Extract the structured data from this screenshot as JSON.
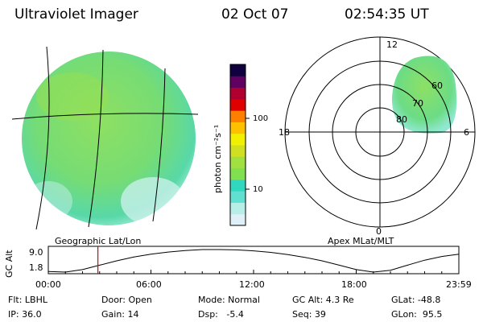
{
  "header": {
    "instrument": "Ultraviolet Imager",
    "date": "02 Oct 07",
    "time": "02:54:35 UT"
  },
  "geographic_panel": {
    "caption": "Geographic Lat/Lon"
  },
  "apex_panel": {
    "caption": "Apex MLat/MLT",
    "mlt_labels": [
      "12",
      "6",
      "0",
      "18"
    ],
    "mlat_labels": [
      "60",
      "70",
      "80"
    ]
  },
  "colorbar": {
    "label": "photon cm⁻²s⁻¹",
    "ticks": [
      "100",
      "10"
    ],
    "colors": [
      "#e0f0f8",
      "#b8eee8",
      "#60e0d0",
      "#30d8c0",
      "#80e050",
      "#a0e040",
      "#d0e020",
      "#f0f000",
      "#ffc000",
      "#ff8000",
      "#e00000",
      "#b00030",
      "#600060",
      "#100040"
    ]
  },
  "timeseries": {
    "ylabel": "GC Alt",
    "ymax_label": "9.0",
    "ymin_label": "1.8",
    "xticks": [
      "00:00",
      "06:00",
      "12:00",
      "18:00",
      "23:59"
    ],
    "current_time_marker_hours": 2.9,
    "chart_data": {
      "type": "line",
      "xlabel": "",
      "ylabel": "GC Alt",
      "ylim": [
        1.8,
        9.0
      ],
      "xlim": [
        0,
        24
      ],
      "x": [
        0,
        1,
        2,
        3,
        4,
        5,
        6,
        7,
        8,
        9,
        10,
        11,
        12,
        13,
        14,
        15,
        16,
        17,
        18,
        19,
        20,
        21,
        22,
        23,
        24
      ],
      "y": [
        2.0,
        1.8,
        2.6,
        4.0,
        5.4,
        6.6,
        7.5,
        8.2,
        8.7,
        9.0,
        9.0,
        8.9,
        8.6,
        8.1,
        7.4,
        6.5,
        5.4,
        4.0,
        2.6,
        1.8,
        2.4,
        4.0,
        5.6,
        6.8,
        7.5
      ]
    }
  },
  "footer": {
    "col1": [
      "Flt: LBHL",
      "IP: 36.0"
    ],
    "col2": [
      "Door: Open",
      "Gain: 14"
    ],
    "col3": [
      "Mode: Normal",
      "Dsp:   -5.4"
    ],
    "col4": [
      "GC Alt: 4.3 Re",
      "Seq: 39"
    ],
    "col5": [
      "GLat: -48.8",
      "GLon:  95.5"
    ]
  }
}
